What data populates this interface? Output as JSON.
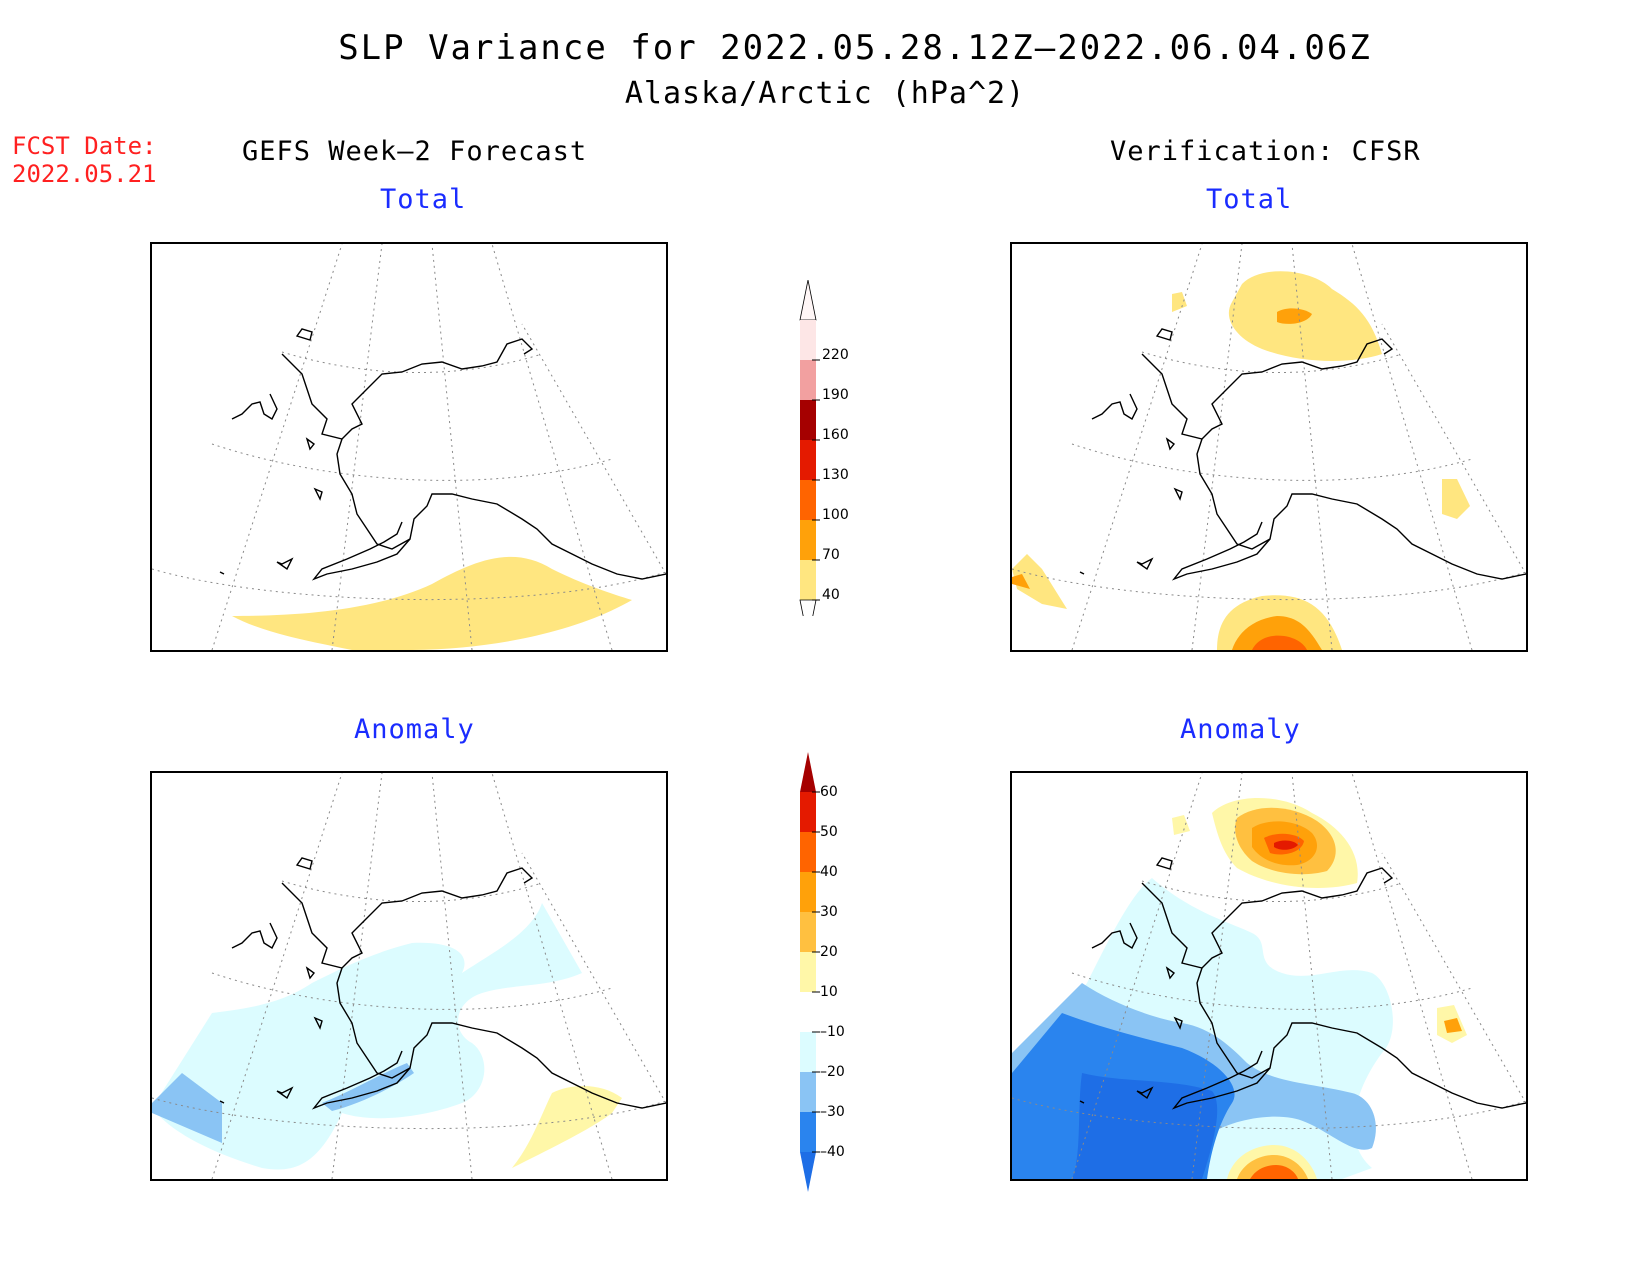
{
  "title": "SLP Variance for 2022.05.28.12Z–2022.06.04.06Z",
  "subtitle": "Alaska/Arctic (hPa^2)",
  "fcst_label": "FCST Date:",
  "fcst_date": "2022.05.21",
  "left_heading": "GEFS Week–2 Forecast",
  "right_heading": "Verification: CFSR",
  "panels": {
    "forecast_total": "Total",
    "verification_total": "Total",
    "forecast_anomaly": "Anomaly",
    "verification_anomaly": "Anomaly"
  },
  "colorbar_total": {
    "labels": [
      "40",
      "70",
      "100",
      "130",
      "160",
      "190",
      "220"
    ],
    "colors": [
      "#ffe680",
      "#ffa10a",
      "#ff6400",
      "#e41a00",
      "#a50000",
      "#f2a0a0",
      "#fde6e6"
    ]
  },
  "colorbar_anomaly": {
    "labels": [
      "–40",
      "–30",
      "–20",
      "–10",
      "10",
      "20",
      "30",
      "40",
      "50",
      "60"
    ],
    "colors": [
      "#1e6ee6",
      "#2a84ee",
      "#8ac4f4",
      "#dcfcff",
      "#ffffff",
      "#fff7a8",
      "#ffc040",
      "#ffa10a",
      "#ff6400",
      "#e41a00",
      "#a50000"
    ]
  },
  "shade_colors": {
    "yellow": "#ffe680",
    "orange_light": "#ffa10a",
    "orange": "#ff6400",
    "red": "#e41a00",
    "cyan_light": "#dcfcff",
    "blue_light": "#8ac4f4",
    "blue": "#2a84ee",
    "blue_dark": "#1e6ee6",
    "pale_yellow": "#fff7a8",
    "gold": "#ffc040"
  }
}
